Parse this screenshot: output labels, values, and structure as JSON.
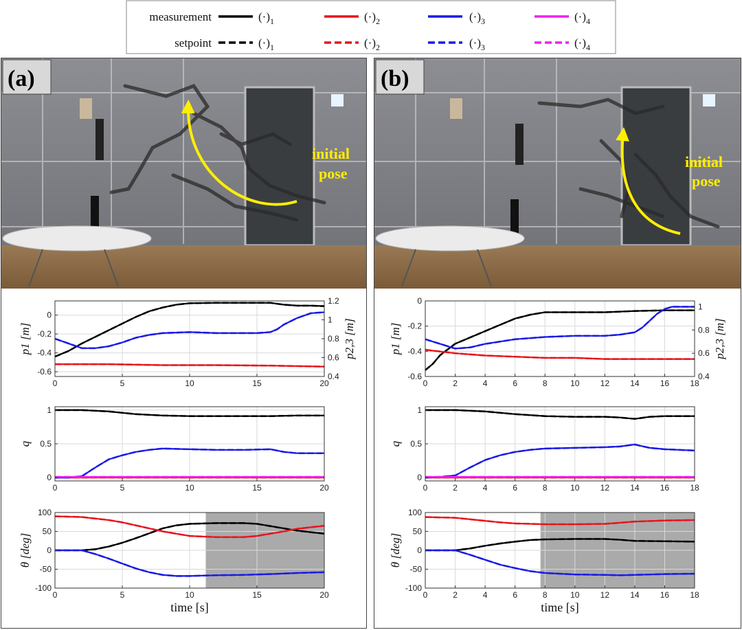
{
  "legend": {
    "rows": [
      {
        "label": "measurement",
        "dash": false
      },
      {
        "label": "setpoint",
        "dash": true
      }
    ],
    "entries": [
      {
        "text": "(·)",
        "sub": "1",
        "color": "#000000"
      },
      {
        "text": "(·)",
        "sub": "2",
        "color": "#e8141c"
      },
      {
        "text": "(·)",
        "sub": "3",
        "color": "#1a1ae6"
      },
      {
        "text": "(·)",
        "sub": "4",
        "color": "#ee22ee"
      }
    ]
  },
  "panels": [
    {
      "badge": "(a)",
      "annotation": [
        "initial",
        "pose"
      ]
    },
    {
      "badge": "(b)",
      "annotation": [
        "initial",
        "pose"
      ]
    }
  ],
  "colors": {
    "c1": "#000000",
    "c2": "#e8141c",
    "c3": "#1a1ae6",
    "c4": "#ee22ee",
    "shade": "#aaaaaa"
  },
  "chart_data": [
    {
      "type": "line",
      "panel": "a",
      "row": "p",
      "ylabel": "p1 [m]",
      "ylabel_right": "p2,3 [m]",
      "xlim": [
        0,
        20
      ],
      "ylim": [
        -0.65,
        0.15
      ],
      "ylim_right": [
        0.4,
        1.2
      ],
      "xticks": [
        0,
        5,
        10,
        15,
        20
      ],
      "yticks": [
        -0.6,
        -0.4,
        -0.2,
        0
      ],
      "yticks_right": [
        0.4,
        0.6,
        0.8,
        1.0,
        1.2
      ],
      "grid": true,
      "series": [
        {
          "color_key": "c1",
          "axis": "left",
          "x": [
            0,
            1,
            2,
            3,
            4,
            5,
            6,
            7,
            8,
            9,
            10,
            12,
            14,
            16,
            17,
            18,
            19,
            20
          ],
          "y": [
            -0.44,
            -0.38,
            -0.3,
            -0.23,
            -0.16,
            -0.09,
            -0.02,
            0.04,
            0.08,
            0.11,
            0.125,
            0.13,
            0.13,
            0.13,
            0.11,
            0.1,
            0.1,
            0.095
          ]
        },
        {
          "color_key": "c2",
          "axis": "right",
          "x": [
            0,
            4,
            8,
            12,
            16,
            20
          ],
          "y": [
            0.53,
            0.53,
            0.52,
            0.52,
            0.515,
            0.505
          ]
        },
        {
          "color_key": "c3",
          "axis": "right",
          "x": [
            0,
            1,
            2,
            3,
            4,
            5,
            6,
            7,
            8,
            10,
            12,
            14,
            15,
            16,
            16.5,
            17,
            18,
            19,
            20
          ],
          "y": [
            0.8,
            0.75,
            0.7,
            0.7,
            0.72,
            0.76,
            0.81,
            0.84,
            0.86,
            0.87,
            0.86,
            0.86,
            0.86,
            0.87,
            0.9,
            0.95,
            1.02,
            1.07,
            1.08
          ]
        }
      ]
    },
    {
      "type": "line",
      "panel": "a",
      "row": "q",
      "ylabel": "q",
      "xlim": [
        0,
        20
      ],
      "ylim": [
        -0.05,
        1.05
      ],
      "xticks": [
        0,
        5,
        10,
        15,
        20
      ],
      "yticks": [
        0,
        0.5,
        1
      ],
      "grid": true,
      "series": [
        {
          "color_key": "c1",
          "x": [
            0,
            2,
            4,
            6,
            8,
            10,
            12,
            14,
            16,
            18,
            20
          ],
          "y": [
            1,
            1,
            0.98,
            0.94,
            0.92,
            0.91,
            0.91,
            0.91,
            0.91,
            0.92,
            0.92
          ]
        },
        {
          "color_key": "c2",
          "x": [
            0,
            20
          ],
          "y": [
            0,
            0
          ]
        },
        {
          "color_key": "c3",
          "x": [
            0,
            1,
            2,
            3,
            4,
            5,
            6,
            7,
            8,
            10,
            12,
            14,
            16,
            17,
            18,
            20
          ],
          "y": [
            0,
            0,
            0.02,
            0.15,
            0.27,
            0.33,
            0.38,
            0.41,
            0.43,
            0.42,
            0.41,
            0.41,
            0.42,
            0.38,
            0.36,
            0.36
          ]
        },
        {
          "color_key": "c4",
          "x": [
            0,
            20
          ],
          "y": [
            0.01,
            0.01
          ]
        }
      ]
    },
    {
      "type": "line",
      "panel": "a",
      "row": "theta",
      "ylabel": "θ [deg]",
      "xlabel": "time [s]",
      "xlim": [
        0,
        20
      ],
      "ylim": [
        -100,
        100
      ],
      "xticks": [
        0,
        5,
        10,
        15,
        20
      ],
      "yticks": [
        -100,
        -50,
        0,
        50,
        100
      ],
      "grid": true,
      "shaded_x": [
        11.2,
        20
      ],
      "series": [
        {
          "color_key": "c1",
          "x": [
            0,
            2,
            3,
            4,
            5,
            6,
            7,
            8,
            9,
            10,
            12,
            14,
            15,
            16,
            17,
            18,
            20
          ],
          "y": [
            0,
            0,
            3,
            10,
            20,
            32,
            45,
            58,
            66,
            70,
            72,
            72,
            70,
            64,
            58,
            52,
            44
          ]
        },
        {
          "color_key": "c2",
          "x": [
            0,
            2,
            3,
            4,
            5,
            6,
            7,
            8,
            9,
            10,
            12,
            14,
            15,
            16,
            17,
            18,
            20
          ],
          "y": [
            90,
            88,
            84,
            80,
            74,
            66,
            58,
            50,
            44,
            38,
            35,
            35,
            38,
            44,
            50,
            57,
            65
          ]
        },
        {
          "color_key": "c3",
          "x": [
            0,
            2,
            3,
            4,
            5,
            6,
            7,
            8,
            9,
            10,
            12,
            14,
            16,
            18,
            20
          ],
          "y": [
            0,
            0,
            -10,
            -22,
            -35,
            -48,
            -58,
            -65,
            -68,
            -68,
            -66,
            -65,
            -63,
            -60,
            -58
          ]
        }
      ]
    },
    {
      "type": "line",
      "panel": "b",
      "row": "p",
      "ylabel": "p1 [m]",
      "ylabel_right": "p2,3 [m]",
      "xlim": [
        0,
        18
      ],
      "ylim": [
        -0.6,
        0
      ],
      "ylim_right": [
        0.4,
        1.05
      ],
      "xticks": [
        0,
        2,
        4,
        6,
        8,
        10,
        12,
        14,
        16,
        18
      ],
      "yticks": [
        -0.6,
        -0.4,
        -0.2,
        0
      ],
      "yticks_right": [
        0.4,
        0.6,
        0.8,
        1.0
      ],
      "grid": true,
      "series": [
        {
          "color_key": "c1",
          "axis": "left",
          "x": [
            0,
            0.5,
            1,
            2,
            3,
            4,
            5,
            6,
            7,
            8,
            10,
            12,
            14,
            16,
            18
          ],
          "y": [
            -0.55,
            -0.5,
            -0.43,
            -0.34,
            -0.29,
            -0.24,
            -0.19,
            -0.14,
            -0.11,
            -0.09,
            -0.09,
            -0.09,
            -0.08,
            -0.075,
            -0.075
          ]
        },
        {
          "color_key": "c2",
          "axis": "right",
          "x": [
            0,
            2,
            4,
            6,
            8,
            10,
            12,
            14,
            16,
            18
          ],
          "y": [
            0.63,
            0.6,
            0.58,
            0.57,
            0.56,
            0.56,
            0.55,
            0.55,
            0.55,
            0.55
          ]
        },
        {
          "color_key": "c3",
          "axis": "right",
          "x": [
            0,
            1,
            2,
            3,
            4,
            5,
            6,
            7,
            8,
            10,
            12,
            13,
            14,
            14.5,
            15,
            15.5,
            16,
            16.5,
            17,
            18
          ],
          "y": [
            0.72,
            0.68,
            0.64,
            0.65,
            0.68,
            0.7,
            0.72,
            0.73,
            0.74,
            0.75,
            0.75,
            0.76,
            0.78,
            0.82,
            0.88,
            0.94,
            0.98,
            1.0,
            1.0,
            1.0
          ]
        }
      ]
    },
    {
      "type": "line",
      "panel": "b",
      "row": "q",
      "ylabel": "q",
      "xlim": [
        0,
        18
      ],
      "ylim": [
        -0.05,
        1.05
      ],
      "xticks": [
        0,
        2,
        4,
        6,
        8,
        10,
        12,
        14,
        16,
        18
      ],
      "yticks": [
        0,
        0.5,
        1
      ],
      "grid": true,
      "series": [
        {
          "color_key": "c1",
          "x": [
            0,
            2,
            4,
            6,
            8,
            10,
            12,
            13,
            14,
            15,
            16,
            18
          ],
          "y": [
            1,
            1,
            0.98,
            0.94,
            0.91,
            0.9,
            0.9,
            0.89,
            0.87,
            0.9,
            0.91,
            0.91
          ]
        },
        {
          "color_key": "c2",
          "x": [
            0,
            18
          ],
          "y": [
            0,
            0
          ]
        },
        {
          "color_key": "c3",
          "x": [
            0,
            1,
            2,
            3,
            4,
            5,
            6,
            7,
            8,
            10,
            12,
            13,
            14,
            15,
            16,
            17,
            18
          ],
          "y": [
            0,
            0.01,
            0.03,
            0.15,
            0.26,
            0.33,
            0.38,
            0.41,
            0.43,
            0.44,
            0.45,
            0.46,
            0.49,
            0.44,
            0.42,
            0.41,
            0.4
          ]
        },
        {
          "color_key": "c4",
          "x": [
            0,
            18
          ],
          "y": [
            0.01,
            0.01
          ]
        }
      ]
    },
    {
      "type": "line",
      "panel": "b",
      "row": "theta",
      "ylabel": "θ [deg]",
      "xlabel": "time [s]",
      "xlim": [
        0,
        18
      ],
      "ylim": [
        -100,
        100
      ],
      "xticks": [
        0,
        2,
        4,
        6,
        8,
        10,
        12,
        14,
        16,
        18
      ],
      "yticks": [
        -100,
        -50,
        0,
        50,
        100
      ],
      "grid": true,
      "shaded_x": [
        7.7,
        18
      ],
      "series": [
        {
          "color_key": "c1",
          "x": [
            0,
            2,
            3,
            4,
            5,
            6,
            7,
            8,
            10,
            12,
            13,
            14,
            16,
            18
          ],
          "y": [
            0,
            0,
            5,
            12,
            18,
            23,
            27,
            29,
            30,
            30,
            28,
            25,
            24,
            23
          ]
        },
        {
          "color_key": "c2",
          "x": [
            0,
            2,
            3,
            4,
            5,
            6,
            7,
            8,
            10,
            12,
            13,
            14,
            16,
            18
          ],
          "y": [
            88,
            86,
            82,
            78,
            74,
            71,
            70,
            69,
            69,
            70,
            73,
            76,
            79,
            80
          ]
        },
        {
          "color_key": "c3",
          "x": [
            0,
            2,
            3,
            4,
            5,
            6,
            7,
            8,
            10,
            12,
            13,
            14,
            16,
            18
          ],
          "y": [
            0,
            0,
            -12,
            -25,
            -38,
            -47,
            -55,
            -60,
            -64,
            -65,
            -66,
            -65,
            -63,
            -62
          ]
        }
      ]
    }
  ]
}
